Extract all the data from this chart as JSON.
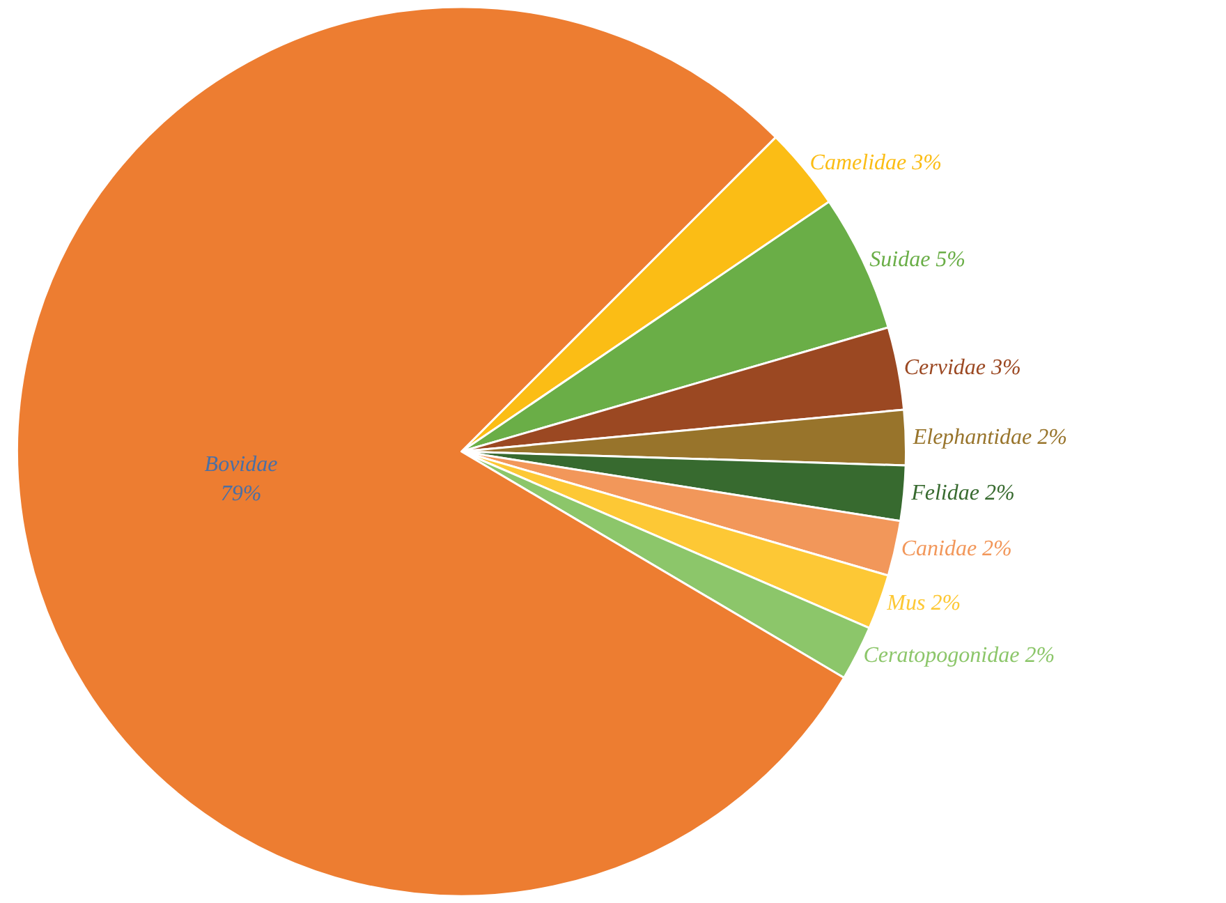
{
  "chart_data": {
    "type": "pie",
    "categories": [
      "Camelidae",
      "Suidae",
      "Cervidae",
      "Elephantidae",
      "Felidae",
      "Canidae",
      "Mus",
      "Ceratopogonidae",
      "Bovidae"
    ],
    "values": [
      3,
      5,
      3,
      2,
      2,
      2,
      2,
      2,
      79
    ],
    "value_labels": [
      "3%",
      "5%",
      "3%",
      "2%",
      "2%",
      "2%",
      "2%",
      "2%",
      "79%"
    ],
    "colors": [
      "#fbbd15",
      "#6aae47",
      "#9b4822",
      "#98742b",
      "#376a2f",
      "#f2975a",
      "#fdc835",
      "#8cc66a",
      "#ed7d31"
    ],
    "legend": false
  }
}
